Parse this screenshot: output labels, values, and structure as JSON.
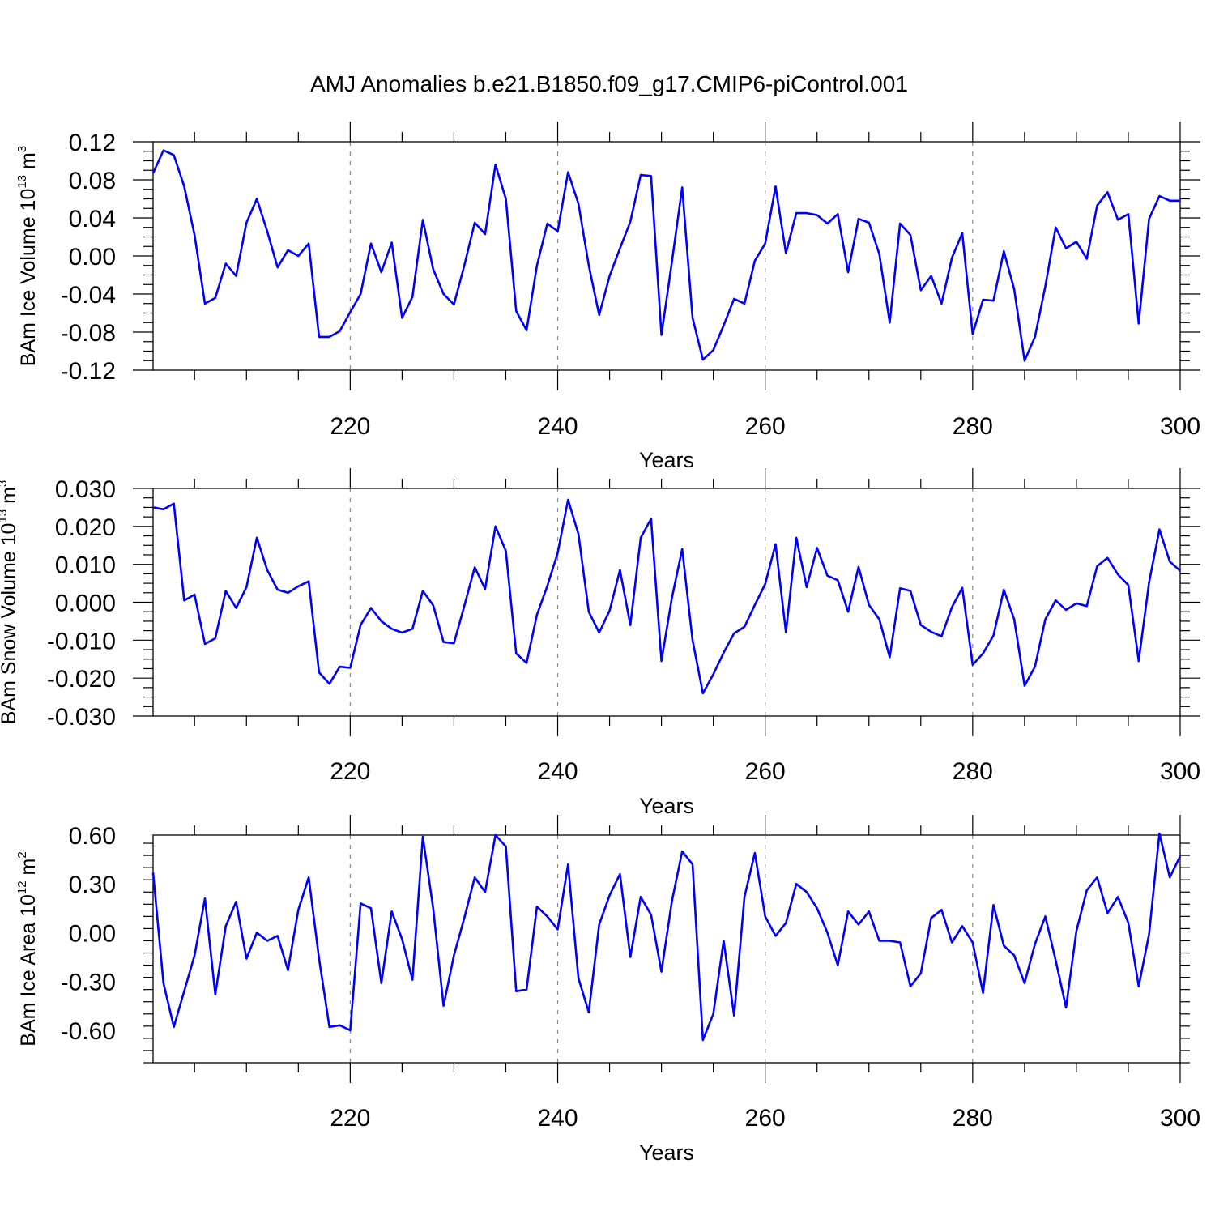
{
  "title": "AMJ Anomalies b.e21.B1850.f09_g17.CMIP6-piControl.001",
  "chart_data": [
    {
      "type": "line",
      "ylabel": {
        "text": "BAm Ice Volume 10",
        "exponent": "13",
        "unit": "m",
        "unit_exponent": "3"
      },
      "xlabel": "Years",
      "xlim": [
        201,
        300
      ],
      "ylim": [
        -0.12,
        0.12
      ],
      "x_ticks": [
        220,
        240,
        260,
        280,
        300
      ],
      "y_ticks": [
        -0.12,
        -0.08,
        -0.04,
        0.0,
        0.04,
        0.08,
        0.12
      ],
      "y_tick_labels": [
        "-0.12",
        "-0.08",
        "-0.04",
        "0.00",
        "0.04",
        "0.08",
        "0.12"
      ],
      "line_color": "#0000ff",
      "x_start": 201,
      "values": [
        0.087,
        0.111,
        0.106,
        0.073,
        0.022,
        -0.05,
        -0.044,
        -0.008,
        -0.021,
        0.035,
        0.06,
        0.026,
        -0.012,
        0.006,
        0.0,
        0.013,
        -0.085,
        -0.085,
        -0.079,
        -0.059,
        -0.04,
        0.013,
        -0.017,
        0.014,
        -0.065,
        -0.043,
        0.038,
        -0.014,
        -0.04,
        -0.051,
        -0.01,
        0.035,
        0.023,
        0.096,
        0.06,
        -0.058,
        -0.078,
        -0.01,
        0.034,
        0.026,
        0.088,
        0.055,
        -0.01,
        -0.062,
        -0.021,
        0.008,
        0.036,
        0.085,
        0.084,
        -0.083,
        -0.007,
        0.072,
        -0.065,
        -0.109,
        -0.099,
        -0.073,
        -0.045,
        -0.05,
        -0.005,
        0.013,
        0.073,
        0.003,
        0.045,
        0.045,
        0.043,
        0.034,
        0.044,
        -0.017,
        0.039,
        0.035,
        0.002,
        -0.07,
        0.034,
        0.022,
        -0.036,
        -0.021,
        -0.05,
        -0.002,
        0.024,
        -0.082,
        -0.046,
        -0.047,
        0.005,
        -0.035,
        -0.11,
        -0.085,
        -0.032,
        0.03,
        0.008,
        0.015,
        -0.003,
        0.053,
        0.067,
        0.038,
        0.044,
        -0.071,
        0.039,
        0.063,
        0.058,
        0.058
      ]
    },
    {
      "type": "line",
      "ylabel": {
        "text": "BAm Snow Volume 10",
        "exponent": "13",
        "unit": "m",
        "unit_exponent": "3"
      },
      "xlabel": "Years",
      "xlim": [
        201,
        300
      ],
      "ylim": [
        -0.03,
        0.03
      ],
      "x_ticks": [
        220,
        240,
        260,
        280,
        300
      ],
      "y_ticks": [
        -0.03,
        -0.02,
        -0.01,
        0.0,
        0.01,
        0.02,
        0.03
      ],
      "y_tick_labels": [
        "-0.030",
        "-0.020",
        "-0.010",
        "0.000",
        "0.010",
        "0.020",
        "0.030"
      ],
      "line_color": "#0000ff",
      "x_start": 201,
      "values": [
        0.025,
        0.0245,
        0.026,
        0.0005,
        0.002,
        -0.011,
        -0.0095,
        0.003,
        -0.0015,
        0.004,
        0.017,
        0.0085,
        0.0033,
        0.0025,
        0.0042,
        0.0055,
        -0.0185,
        -0.0215,
        -0.017,
        -0.0173,
        -0.006,
        -0.0015,
        -0.005,
        -0.007,
        -0.008,
        -0.007,
        0.003,
        -0.0008,
        -0.0105,
        -0.0108,
        -0.001,
        0.0092,
        0.0035,
        0.02,
        0.0135,
        -0.0135,
        -0.016,
        -0.0033,
        0.0043,
        0.013,
        0.027,
        0.018,
        -0.0025,
        -0.008,
        -0.0022,
        0.0085,
        -0.006,
        0.017,
        0.022,
        -0.0155,
        0.001,
        0.014,
        -0.01,
        -0.024,
        -0.019,
        -0.0133,
        -0.0082,
        -0.0065,
        -0.0007,
        0.0048,
        0.0153,
        -0.0079,
        0.017,
        0.004,
        0.0143,
        0.007,
        0.0058,
        -0.0025,
        0.0093,
        -0.0007,
        -0.0045,
        -0.0145,
        0.0037,
        0.003,
        -0.006,
        -0.0078,
        -0.009,
        -0.0013,
        0.0038,
        -0.0165,
        -0.0135,
        -0.0088,
        0.0033,
        -0.0045,
        -0.022,
        -0.017,
        -0.0045,
        0.0005,
        -0.002,
        -0.0003,
        -0.001,
        0.0095,
        0.0117,
        0.0073,
        0.0045,
        -0.0155,
        0.0052,
        0.0192,
        0.0107,
        0.0083
      ]
    },
    {
      "type": "line",
      "ylabel": {
        "text": "BAm Ice Area 10",
        "exponent": "12",
        "unit": "m",
        "unit_exponent": "2"
      },
      "xlabel": "Years",
      "xlim": [
        201,
        300
      ],
      "ylim": [
        -0.8,
        0.6
      ],
      "x_ticks": [
        220,
        240,
        260,
        280,
        300
      ],
      "y_ticks": [
        -0.6,
        -0.3,
        0.0,
        0.3,
        0.6
      ],
      "y_tick_labels": [
        "-0.60",
        "-0.30",
        "0.00",
        "0.30",
        "0.60"
      ],
      "line_color": "#0000ff",
      "x_start": 201,
      "values": [
        0.37,
        -0.31,
        -0.58,
        -0.36,
        -0.14,
        0.21,
        -0.38,
        0.04,
        0.19,
        -0.16,
        0.0,
        -0.05,
        -0.02,
        -0.23,
        0.14,
        0.34,
        -0.16,
        -0.58,
        -0.57,
        -0.6,
        0.18,
        0.15,
        -0.31,
        0.13,
        -0.04,
        -0.29,
        0.59,
        0.15,
        -0.45,
        -0.14,
        0.09,
        0.34,
        0.25,
        0.6,
        0.53,
        -0.36,
        -0.35,
        0.16,
        0.1,
        0.02,
        0.42,
        -0.28,
        -0.49,
        0.05,
        0.23,
        0.36,
        -0.15,
        0.22,
        0.11,
        -0.24,
        0.19,
        0.5,
        0.42,
        -0.66,
        -0.5,
        -0.05,
        -0.51,
        0.22,
        0.49,
        0.1,
        -0.02,
        0.06,
        0.3,
        0.25,
        0.15,
        0.0,
        -0.2,
        0.13,
        0.05,
        0.13,
        -0.05,
        -0.05,
        -0.06,
        -0.33,
        -0.25,
        0.09,
        0.14,
        -0.06,
        0.04,
        -0.06,
        -0.37,
        0.17,
        -0.08,
        -0.14,
        -0.31,
        -0.07,
        0.1,
        -0.17,
        -0.46,
        0.01,
        0.26,
        0.34,
        0.12,
        0.22,
        0.06,
        -0.33,
        -0.01,
        0.61,
        0.34,
        0.47
      ]
    }
  ]
}
